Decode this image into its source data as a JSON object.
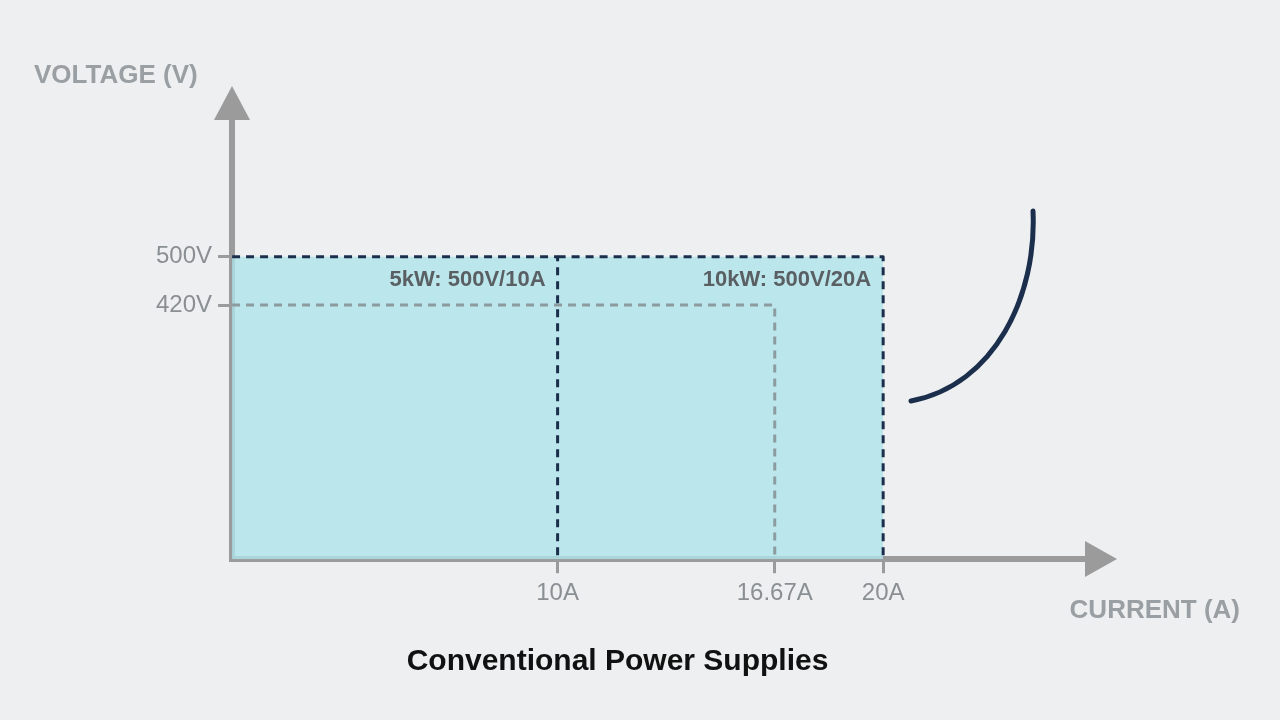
{
  "chart_data": {
    "type": "line",
    "title": "Conventional Power Supplies",
    "xlabel": "CURRENT (A)",
    "ylabel": "VOLTAGE (V)",
    "series": [
      {
        "type": "area",
        "color": "#aee3ea",
        "x": [
          0,
          20
        ],
        "values": [
          500,
          500
        ]
      },
      {
        "color": "#8c9ba0",
        "line_style": "dashed",
        "x": [
          0,
          16.67,
          16.67
        ],
        "values": [
          420,
          420,
          0
        ]
      },
      {
        "color": "#1b2f4d",
        "line_style": "dashed",
        "x": [
          0,
          10,
          10
        ],
        "values": [
          500,
          500,
          0
        ]
      },
      {
        "color": "#1b2f4d",
        "line_style": "dashed",
        "x": [
          10,
          20,
          20
        ],
        "values": [
          500,
          500,
          0
        ]
      }
    ],
    "xlim": [
      0,
      26.2
    ],
    "ylim": [
      0,
      726
    ],
    "xticks": [
      {
        "value": 10,
        "label": "10A"
      },
      {
        "value": 16.67,
        "label": "16.67A"
      },
      {
        "value": 20,
        "label": "20A"
      }
    ],
    "yticks": [
      {
        "value": 420,
        "label": "420V"
      },
      {
        "value": 500,
        "label": "500V"
      }
    ],
    "annotations": [
      {
        "text": "5kW: 500V/10A",
        "x": 10,
        "y": 500
      },
      {
        "text": "10kW: 500V/20A",
        "x": 20,
        "y": 500
      }
    ],
    "grid": false,
    "legend": false,
    "marker": "none"
  }
}
